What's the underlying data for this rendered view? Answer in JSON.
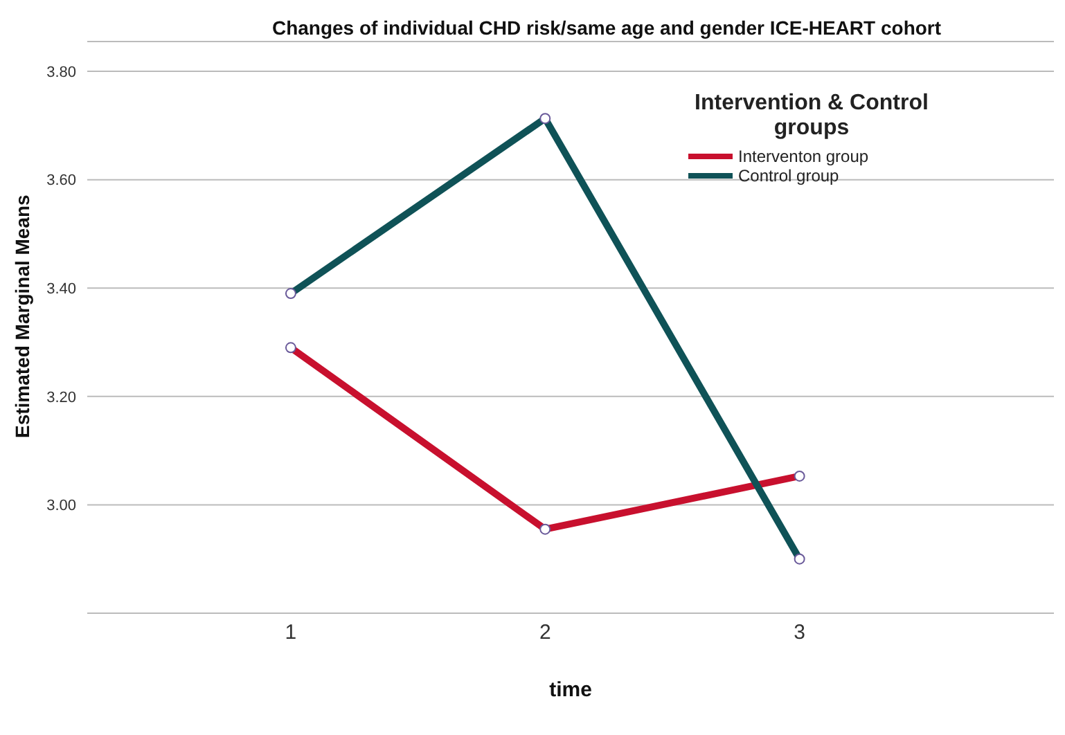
{
  "chart_data": {
    "type": "line",
    "title": "Changes of individual CHD risk/same age and gender ICE-HEART cohort",
    "xlabel": "time",
    "ylabel": "Estimated Marginal Means",
    "legend_title": "Intervention & Control groups",
    "categories": [
      "1",
      "2",
      "3"
    ],
    "series": [
      {
        "name": "Interventon group",
        "color": "#c8102e",
        "values": [
          3.29,
          2.955,
          3.053
        ]
      },
      {
        "name": "Control group",
        "color": "#0f5257",
        "values": [
          3.39,
          3.713,
          2.9
        ]
      }
    ],
    "ylim": [
      2.8,
      3.855
    ],
    "yticks": [
      {
        "value": 3.0,
        "label": "3.00"
      },
      {
        "value": 3.2,
        "label": "3.20"
      },
      {
        "value": 3.4,
        "label": "3.40"
      },
      {
        "value": 3.6,
        "label": "3.60"
      },
      {
        "value": 3.8,
        "label": "3.80"
      }
    ],
    "grid": "y",
    "legend": "top right",
    "marker": "circle",
    "line_style": "solid"
  }
}
